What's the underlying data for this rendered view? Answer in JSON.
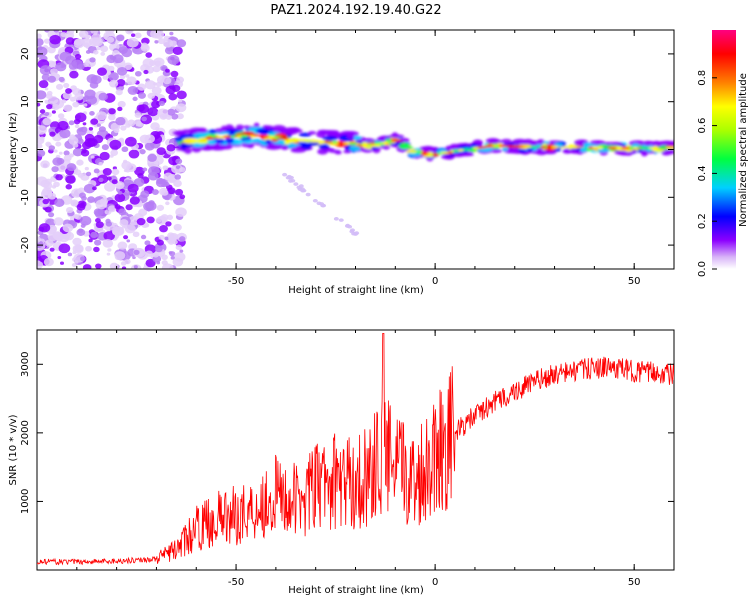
{
  "title": "PAZ1.2024.192.19.40.G22",
  "chart_data": [
    {
      "type": "heatmap",
      "xlabel": "Height of straight line (km)",
      "ylabel": "Frequency (Hz)",
      "xlim": [
        -100,
        60
      ],
      "ylim": [
        -25,
        25
      ],
      "xticks": [
        -50,
        0,
        50
      ],
      "yticks": [
        -20,
        -10,
        0,
        10,
        20
      ],
      "colorbar": {
        "label": "Normalized spectral amplitude",
        "range": [
          0,
          1
        ],
        "ticks": [
          0.0,
          0.2,
          0.4,
          0.6,
          0.8
        ],
        "colors": [
          "#ffffff",
          "#d8b4f8",
          "#8c00ff",
          "#0000ff",
          "#00d0ff",
          "#00ff00",
          "#ffff00",
          "#ff8000",
          "#ff0000",
          "#ff0080"
        ]
      },
      "ridge": {
        "x": [
          -65,
          -55,
          -45,
          -35,
          -25,
          -15,
          -10,
          -5,
          0,
          5,
          15,
          25,
          35,
          45,
          60
        ],
        "y": [
          1.5,
          2.5,
          3.0,
          2.0,
          1.5,
          0.8,
          2.0,
          -0.5,
          -1.0,
          -0.3,
          0.8,
          0.5,
          0.5,
          0.3,
          0.3
        ]
      },
      "noise_region_x": [
        -100,
        -65
      ],
      "secondary_streak": {
        "x": [
          -38,
          -18
        ],
        "y": [
          -5,
          -19
        ]
      }
    },
    {
      "type": "line",
      "xlabel": "Height of straight line (km)",
      "ylabel": "SNR (10 * v/v)",
      "xlim": [
        -100,
        60
      ],
      "ylim": [
        0,
        3500
      ],
      "xticks": [
        -50,
        0,
        50
      ],
      "yticks": [
        1000,
        2000,
        3000
      ],
      "color": "#ff0000",
      "series": [
        {
          "x": [
            -100,
            -90,
            -80,
            -70,
            -65,
            -60,
            -55,
            -50,
            -45,
            -40,
            -35,
            -30,
            -25,
            -20,
            -15,
            -13,
            -10,
            -5,
            0,
            5,
            10,
            15,
            20,
            25,
            30,
            35,
            40,
            45,
            50,
            55,
            60
          ],
          "y": [
            120,
            120,
            130,
            160,
            300,
            600,
            750,
            800,
            900,
            1100,
            1000,
            1200,
            1300,
            1250,
            1500,
            1700,
            1500,
            1300,
            1750,
            2000,
            2250,
            2450,
            2600,
            2750,
            2850,
            2900,
            2950,
            2950,
            2900,
            2880,
            2850
          ]
        }
      ]
    }
  ]
}
